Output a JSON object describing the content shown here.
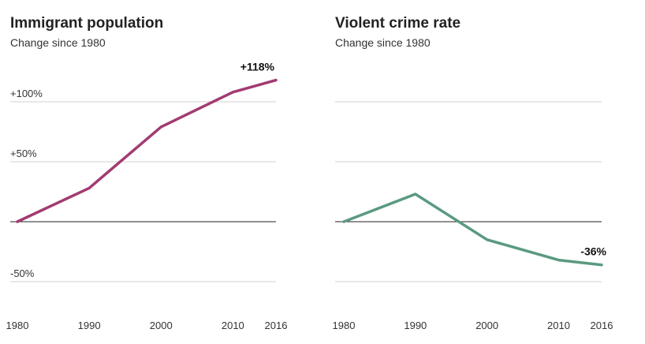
{
  "chart_data": [
    {
      "type": "line",
      "title": "Immigrant population",
      "subtitle": "Change since 1980",
      "x": [
        1980,
        1990,
        2000,
        2010,
        2016
      ],
      "series": [
        {
          "values": [
            0,
            28,
            79,
            108,
            118
          ]
        }
      ],
      "end_label": "+118%",
      "y_ticks": [
        {
          "value": 100,
          "label": "+100%"
        },
        {
          "value": 50,
          "label": "+50%"
        },
        {
          "value": 0,
          "label": ""
        },
        {
          "value": -50,
          "label": "-50%"
        }
      ],
      "x_tick_labels": [
        "1980",
        "1990",
        "2000",
        "2010",
        "2016"
      ],
      "ylim": [
        -50,
        118
      ],
      "grid": true,
      "color": "#a23b72"
    },
    {
      "type": "line",
      "title": "Violent crime rate",
      "subtitle": "Change since 1980",
      "x": [
        1980,
        1990,
        2000,
        2010,
        2016
      ],
      "series": [
        {
          "values": [
            0,
            23,
            -15,
            -32,
            -36
          ]
        }
      ],
      "end_label": "-36%",
      "y_ticks": [
        {
          "value": 100,
          "label": ""
        },
        {
          "value": 50,
          "label": ""
        },
        {
          "value": 0,
          "label": ""
        },
        {
          "value": -50,
          "label": ""
        }
      ],
      "x_tick_labels": [
        "1980",
        "1990",
        "2000",
        "2010",
        "2016"
      ],
      "ylim": [
        -50,
        118
      ],
      "grid": true,
      "color": "#5a9a80"
    }
  ]
}
